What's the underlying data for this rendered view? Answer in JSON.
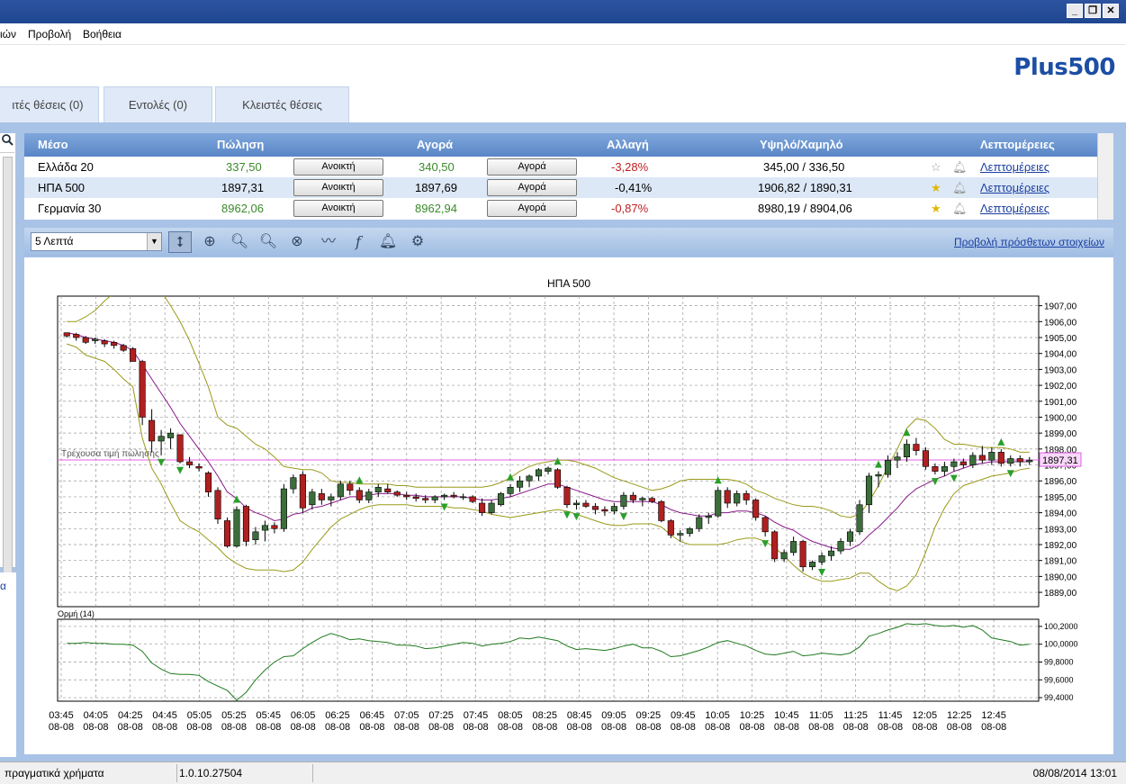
{
  "menu": {
    "items": [
      "ιών",
      "Προβολή",
      "Βοήθεια"
    ]
  },
  "logo": {
    "text": "Plus500"
  },
  "window_controls": {
    "minimize": "_",
    "restore": "❐",
    "close": "✕"
  },
  "tabs": [
    {
      "label": "ιτές θέσεις (0)"
    },
    {
      "label": "Εντολές (0)"
    },
    {
      "label": "Κλειστές θέσεις"
    }
  ],
  "instruments": {
    "headers": {
      "instrument": "Μέσο",
      "sell": "Πώληση",
      "buy": "Αγορά",
      "change": "Αλλαγή",
      "highlow": "Υψηλό/Χαμηλό",
      "details": "Λεπτομέρειες"
    },
    "rows": [
      {
        "name": "Ελλάδα 20",
        "sell": "337,50",
        "sell_btn": "Ανοικτή",
        "buy": "340,50",
        "buy_btn": "Αγορά",
        "change": "-3,28%",
        "highlow": "345,00 / 336,50",
        "details": "Λεπτομέρειες",
        "favorite": false
      },
      {
        "name": "ΗΠΑ 500",
        "sell": "1897,31",
        "sell_btn": "Ανοικτή",
        "buy": "1897,69",
        "buy_btn": "Αγορά",
        "change": "-0,41%",
        "highlow": "1906,82 / 1890,31",
        "details": "Λεπτομέρειες",
        "favorite": true
      },
      {
        "name": "Γερμανία 30",
        "sell": "8962,06",
        "sell_btn": "Ανοικτή",
        "buy": "8962,94",
        "buy_btn": "Αγορά",
        "change": "-0,87%",
        "highlow": "8980,19 / 8904,06",
        "details": "Λεπτομέρειες",
        "favorite": true
      }
    ]
  },
  "toolbar": {
    "timeframe": "5 Λεπτά",
    "more_link": "Προβολή πρόσθετων στοιχείων"
  },
  "status": {
    "mode": "πραγματικά χρήματα",
    "version": "1.0.10.27504",
    "datetime": "08/08/2014 13:01"
  },
  "left_cut_label": "α",
  "colors": {
    "up": "#3c6e3c",
    "down": "#b02020",
    "bollinger": "#9a9a1a",
    "ma": "#8a1a8a",
    "momentum": "#1e7a1e",
    "current_price": "#e060e0"
  },
  "chart_data": {
    "type": "candlestick",
    "title": "ΗΠΑ 500",
    "current_price_label": "Τρέχουσα τιμή πώλησης",
    "current_price": 1897.31,
    "current_price_text": "1897,31",
    "ylim": [
      1888.1,
      1907.6
    ],
    "yticks": [
      "1889,00",
      "1890,00",
      "1891,00",
      "1892,00",
      "1893,00",
      "1894,00",
      "1895,00",
      "1896,00",
      "1897,00",
      "1898,00",
      "1899,00",
      "1900,00",
      "1901,00",
      "1902,00",
      "1903,00",
      "1904,00",
      "1905,00",
      "1906,00",
      "1907,00"
    ],
    "xtick_times": [
      "03:45",
      "04:05",
      "04:25",
      "04:45",
      "05:05",
      "05:25",
      "05:45",
      "06:05",
      "06:25",
      "06:45",
      "07:05",
      "07:25",
      "07:45",
      "08:05",
      "08:25",
      "08:45",
      "09:05",
      "09:25",
      "09:45",
      "10:05",
      "10:25",
      "10:45",
      "11:05",
      "11:25",
      "11:45",
      "12:05",
      "12:25",
      "12:45"
    ],
    "xtick_date": "08-08",
    "candles": [
      [
        1905.3,
        1905.3,
        1905.0,
        1905.1
      ],
      [
        1905.2,
        1905.3,
        1904.8,
        1905.0
      ],
      [
        1905.0,
        1905.1,
        1904.6,
        1904.7
      ],
      [
        1904.8,
        1905.0,
        1904.6,
        1904.9
      ],
      [
        1904.8,
        1904.9,
        1904.4,
        1904.6
      ],
      [
        1904.7,
        1904.8,
        1904.3,
        1904.5
      ],
      [
        1904.5,
        1904.6,
        1904.1,
        1904.2
      ],
      [
        1904.3,
        1904.4,
        1903.5,
        1903.5
      ],
      [
        1903.5,
        1903.6,
        1899.5,
        1900.0
      ],
      [
        1899.8,
        1900.5,
        1897.8,
        1898.5
      ],
      [
        1898.5,
        1899.2,
        1897.6,
        1898.8
      ],
      [
        1898.7,
        1899.3,
        1898.0,
        1899.0
      ],
      [
        1898.9,
        1898.9,
        1897.1,
        1897.2
      ],
      [
        1897.2,
        1897.5,
        1896.8,
        1897.0
      ],
      [
        1896.9,
        1897.1,
        1896.6,
        1896.8
      ],
      [
        1896.5,
        1896.6,
        1895.0,
        1895.3
      ],
      [
        1895.4,
        1895.6,
        1893.3,
        1893.6
      ],
      [
        1893.5,
        1893.7,
        1891.8,
        1891.9
      ],
      [
        1891.9,
        1894.4,
        1891.8,
        1894.2
      ],
      [
        1894.4,
        1894.5,
        1891.9,
        1892.2
      ],
      [
        1892.3,
        1893.1,
        1892.0,
        1892.8
      ],
      [
        1892.9,
        1893.5,
        1892.2,
        1893.2
      ],
      [
        1893.2,
        1893.4,
        1892.7,
        1893.0
      ],
      [
        1893.0,
        1895.8,
        1892.8,
        1895.5
      ],
      [
        1895.5,
        1896.4,
        1895.2,
        1896.2
      ],
      [
        1896.4,
        1896.6,
        1894.0,
        1894.3
      ],
      [
        1894.5,
        1895.5,
        1894.2,
        1895.3
      ],
      [
        1895.2,
        1895.5,
        1894.5,
        1894.8
      ],
      [
        1894.8,
        1895.2,
        1894.4,
        1895.0
      ],
      [
        1895.0,
        1896.0,
        1894.8,
        1895.8
      ],
      [
        1895.8,
        1896.0,
        1895.1,
        1895.4
      ],
      [
        1895.4,
        1895.6,
        1894.6,
        1894.8
      ],
      [
        1894.8,
        1895.5,
        1894.6,
        1895.3
      ],
      [
        1895.3,
        1895.8,
        1895.0,
        1895.6
      ],
      [
        1895.5,
        1895.8,
        1895.2,
        1895.3
      ],
      [
        1895.3,
        1895.4,
        1895.0,
        1895.1
      ],
      [
        1895.1,
        1895.3,
        1894.8,
        1895.0
      ],
      [
        1895.0,
        1895.2,
        1894.7,
        1894.9
      ],
      [
        1894.9,
        1895.1,
        1894.6,
        1894.8
      ],
      [
        1894.8,
        1895.1,
        1894.6,
        1895.0
      ],
      [
        1895.0,
        1895.2,
        1894.8,
        1895.1
      ],
      [
        1895.1,
        1895.3,
        1894.9,
        1895.0
      ],
      [
        1895.0,
        1895.2,
        1894.8,
        1895.0
      ],
      [
        1895.0,
        1895.1,
        1894.6,
        1894.7
      ],
      [
        1894.6,
        1894.9,
        1893.8,
        1894.0
      ],
      [
        1894.0,
        1894.8,
        1893.9,
        1894.6
      ],
      [
        1894.5,
        1895.3,
        1894.4,
        1895.2
      ],
      [
        1895.2,
        1895.8,
        1895.0,
        1895.6
      ],
      [
        1895.6,
        1896.3,
        1895.3,
        1896.0
      ],
      [
        1896.0,
        1896.4,
        1895.6,
        1896.3
      ],
      [
        1896.3,
        1896.8,
        1896.0,
        1896.7
      ],
      [
        1896.6,
        1896.9,
        1896.4,
        1896.8
      ],
      [
        1896.7,
        1896.8,
        1895.5,
        1895.6
      ],
      [
        1895.6,
        1895.7,
        1894.3,
        1894.5
      ],
      [
        1894.5,
        1894.8,
        1894.2,
        1894.6
      ],
      [
        1894.6,
        1894.8,
        1894.3,
        1894.4
      ],
      [
        1894.4,
        1894.6,
        1893.9,
        1894.2
      ],
      [
        1894.2,
        1894.4,
        1893.8,
        1894.1
      ],
      [
        1894.1,
        1894.6,
        1893.9,
        1894.4
      ],
      [
        1894.4,
        1895.3,
        1894.2,
        1895.1
      ],
      [
        1895.1,
        1895.3,
        1894.6,
        1894.8
      ],
      [
        1894.8,
        1895.0,
        1894.4,
        1894.9
      ],
      [
        1894.9,
        1895.0,
        1894.6,
        1894.7
      ],
      [
        1894.7,
        1894.8,
        1893.4,
        1893.5
      ],
      [
        1893.5,
        1893.6,
        1892.4,
        1892.6
      ],
      [
        1892.6,
        1892.9,
        1892.2,
        1892.7
      ],
      [
        1892.7,
        1893.1,
        1892.5,
        1893.0
      ],
      [
        1893.0,
        1893.9,
        1892.8,
        1893.7
      ],
      [
        1893.7,
        1894.0,
        1893.3,
        1893.8
      ],
      [
        1893.8,
        1895.6,
        1893.7,
        1895.4
      ],
      [
        1895.4,
        1895.6,
        1894.3,
        1894.6
      ],
      [
        1894.6,
        1895.4,
        1894.4,
        1895.2
      ],
      [
        1895.2,
        1895.4,
        1894.5,
        1894.8
      ],
      [
        1894.8,
        1894.9,
        1893.5,
        1893.7
      ],
      [
        1893.7,
        1893.8,
        1892.5,
        1892.8
      ],
      [
        1892.8,
        1892.9,
        1890.9,
        1891.1
      ],
      [
        1891.1,
        1891.7,
        1890.9,
        1891.5
      ],
      [
        1891.5,
        1892.5,
        1891.3,
        1892.2
      ],
      [
        1892.2,
        1892.3,
        1890.3,
        1890.6
      ],
      [
        1890.6,
        1891.0,
        1890.4,
        1890.9
      ],
      [
        1890.9,
        1891.5,
        1890.7,
        1891.3
      ],
      [
        1891.3,
        1891.9,
        1891.0,
        1891.6
      ],
      [
        1891.6,
        1892.4,
        1891.4,
        1892.2
      ],
      [
        1892.2,
        1893.0,
        1891.9,
        1892.8
      ],
      [
        1892.8,
        1894.8,
        1892.6,
        1894.5
      ],
      [
        1894.5,
        1896.5,
        1894.0,
        1896.3
      ],
      [
        1896.3,
        1896.6,
        1895.6,
        1896.4
      ],
      [
        1896.4,
        1897.6,
        1896.2,
        1897.3
      ],
      [
        1897.3,
        1897.8,
        1896.8,
        1897.5
      ],
      [
        1897.5,
        1898.6,
        1897.2,
        1898.3
      ],
      [
        1898.3,
        1898.7,
        1897.6,
        1897.9
      ],
      [
        1897.9,
        1898.1,
        1896.7,
        1896.9
      ],
      [
        1896.9,
        1897.1,
        1896.4,
        1896.6
      ],
      [
        1896.6,
        1897.2,
        1896.3,
        1896.9
      ],
      [
        1896.9,
        1897.4,
        1896.6,
        1897.2
      ],
      [
        1897.2,
        1897.4,
        1896.8,
        1897.0
      ],
      [
        1897.0,
        1897.8,
        1896.8,
        1897.6
      ],
      [
        1897.6,
        1898.2,
        1897.1,
        1897.3
      ],
      [
        1897.3,
        1898.1,
        1897.0,
        1897.8
      ],
      [
        1897.8,
        1898.0,
        1896.9,
        1897.1
      ],
      [
        1897.1,
        1897.6,
        1896.9,
        1897.4
      ],
      [
        1897.4,
        1897.6,
        1896.9,
        1897.2
      ],
      [
        1897.2,
        1897.5,
        1897.0,
        1897.3
      ]
    ],
    "ma": [
      1905.3,
      1905.2,
      1905.0,
      1904.9,
      1904.8,
      1904.7,
      1904.5,
      1904.2,
      1903.3,
      1902.4,
      1901.5,
      1900.6,
      1899.6,
      1898.8,
      1898.0,
      1897.2,
      1896.3,
      1895.3,
      1894.9,
      1894.3,
      1894.0,
      1893.8,
      1893.5,
      1893.6,
      1893.9,
      1894.0,
      1894.3,
      1894.4,
      1894.6,
      1894.8,
      1895.0,
      1895.0,
      1895.1,
      1895.2,
      1895.2,
      1895.2,
      1895.1,
      1895.1,
      1895.0,
      1895.0,
      1895.0,
      1895.0,
      1895.0,
      1894.9,
      1894.8,
      1894.8,
      1894.9,
      1895.0,
      1895.2,
      1895.4,
      1895.6,
      1895.8,
      1895.8,
      1895.6,
      1895.4,
      1895.2,
      1895.0,
      1894.8,
      1894.7,
      1894.7,
      1894.7,
      1894.7,
      1894.7,
      1894.5,
      1894.2,
      1894.0,
      1893.9,
      1893.8,
      1893.8,
      1894.0,
      1894.0,
      1894.1,
      1894.1,
      1894.0,
      1893.8,
      1893.4,
      1893.1,
      1892.9,
      1892.5,
      1892.2,
      1892.0,
      1891.8,
      1891.7,
      1891.7,
      1892.0,
      1892.6,
      1893.1,
      1893.7,
      1894.3,
      1895.0,
      1895.5,
      1895.8,
      1896.1,
      1896.3,
      1896.6,
      1896.8,
      1897.0,
      1897.1,
      1897.2,
      1897.2,
      1897.2,
      1897.2,
      1897.2
    ],
    "boll_upper": [
      1906.0,
      1906.0,
      1906.3,
      1906.7,
      1907.3,
      1907.8,
      1908.2,
      1908.4,
      1908.7,
      1908.5,
      1907.9,
      1907.0,
      1906.0,
      1904.8,
      1903.4,
      1901.9,
      1900.0,
      1899.5,
      1899.3,
      1898.8,
      1898.3,
      1898.0,
      1897.5,
      1896.9,
      1896.8,
      1896.7,
      1896.7,
      1896.5,
      1896.0,
      1895.9,
      1895.9,
      1895.8,
      1895.8,
      1895.8,
      1895.8,
      1895.7,
      1895.7,
      1895.6,
      1895.6,
      1895.6,
      1895.6,
      1895.6,
      1895.6,
      1895.6,
      1895.6,
      1895.7,
      1895.9,
      1896.2,
      1896.6,
      1896.9,
      1897.1,
      1897.2,
      1897.3,
      1897.3,
      1897.2,
      1897.0,
      1896.8,
      1896.5,
      1896.2,
      1896.0,
      1895.8,
      1895.6,
      1895.4,
      1895.5,
      1895.7,
      1896.0,
      1896.1,
      1896.1,
      1896.1,
      1896.1,
      1896.1,
      1896.0,
      1895.8,
      1895.4,
      1895.2,
      1894.9,
      1894.7,
      1894.5,
      1894.4,
      1894.4,
      1894.3,
      1894.1,
      1893.8,
      1893.7,
      1893.9,
      1894.7,
      1895.7,
      1896.9,
      1898.0,
      1899.3,
      1899.9,
      1899.8,
      1899.3,
      1898.6,
      1898.3,
      1898.3,
      1898.2,
      1898.1,
      1898.1,
      1898.1,
      1898.0,
      1897.8,
      1897.8
    ],
    "boll_lower": [
      1904.6,
      1904.4,
      1903.9,
      1903.7,
      1903.5,
      1903.0,
      1902.4,
      1901.9,
      1898.7,
      1896.8,
      1895.8,
      1894.6,
      1893.5,
      1893.1,
      1892.8,
      1892.3,
      1891.8,
      1891.2,
      1890.8,
      1890.5,
      1890.4,
      1890.4,
      1890.4,
      1890.3,
      1890.4,
      1890.9,
      1891.7,
      1892.4,
      1893.1,
      1893.6,
      1893.9,
      1894.2,
      1894.4,
      1894.5,
      1894.5,
      1894.5,
      1894.5,
      1894.4,
      1894.4,
      1894.4,
      1894.4,
      1894.3,
      1894.3,
      1894.2,
      1894.1,
      1893.9,
      1893.8,
      1893.7,
      1893.8,
      1893.9,
      1894.0,
      1894.1,
      1894.2,
      1894.1,
      1893.9,
      1893.7,
      1893.5,
      1893.3,
      1893.2,
      1893.2,
      1893.3,
      1893.3,
      1893.3,
      1893.1,
      1892.6,
      1892.2,
      1892.0,
      1892.0,
      1892.0,
      1892.0,
      1892.1,
      1892.3,
      1892.4,
      1892.4,
      1892.2,
      1891.8,
      1891.3,
      1890.7,
      1890.2,
      1889.9,
      1889.7,
      1889.7,
      1889.8,
      1889.9,
      1890.2,
      1890.2,
      1889.7,
      1889.3,
      1889.1,
      1889.4,
      1890.1,
      1891.5,
      1893.1,
      1894.3,
      1895.2,
      1895.7,
      1895.9,
      1896.1,
      1896.3,
      1896.4,
      1896.5,
      1896.7,
      1896.8
    ],
    "up_arrows": [
      18,
      31,
      47,
      52,
      69,
      86,
      89,
      99
    ],
    "down_arrows": [
      10,
      12,
      40,
      53,
      54,
      59,
      74,
      80,
      92,
      94,
      100
    ],
    "momentum": {
      "label": "Ορμή (14)",
      "ylim": [
        99.36,
        100.28
      ],
      "yticks": [
        "99,4000",
        "99,6000",
        "99,8000",
        "100,0000",
        "100,2000"
      ],
      "values": [
        100.01,
        100.01,
        100.02,
        100.01,
        100.01,
        100.0,
        100.0,
        99.99,
        99.92,
        99.79,
        99.72,
        99.67,
        99.66,
        99.66,
        99.65,
        99.58,
        99.53,
        99.48,
        99.37,
        99.46,
        99.6,
        99.71,
        99.8,
        99.86,
        99.87,
        99.95,
        100.02,
        100.08,
        100.12,
        100.09,
        100.05,
        100.06,
        100.04,
        100.03,
        100.02,
        99.99,
        99.99,
        99.98,
        99.95,
        99.96,
        99.98,
        100.0,
        100.02,
        100.01,
        99.98,
        100.0,
        100.01,
        100.03,
        100.07,
        100.06,
        100.08,
        100.06,
        100.04,
        99.98,
        99.94,
        99.95,
        99.94,
        99.93,
        99.95,
        99.98,
        100.0,
        99.96,
        99.96,
        99.92,
        99.86,
        99.87,
        99.9,
        99.93,
        99.97,
        100.02,
        100.04,
        100.01,
        99.98,
        99.93,
        99.89,
        99.88,
        99.9,
        99.92,
        99.87,
        99.88,
        99.9,
        99.89,
        99.88,
        99.9,
        99.97,
        100.09,
        100.12,
        100.16,
        100.19,
        100.23,
        100.22,
        100.23,
        100.21,
        100.2,
        100.21,
        100.19,
        100.21,
        100.16,
        100.07,
        100.05,
        100.03,
        99.99,
        100.0
      ]
    }
  }
}
